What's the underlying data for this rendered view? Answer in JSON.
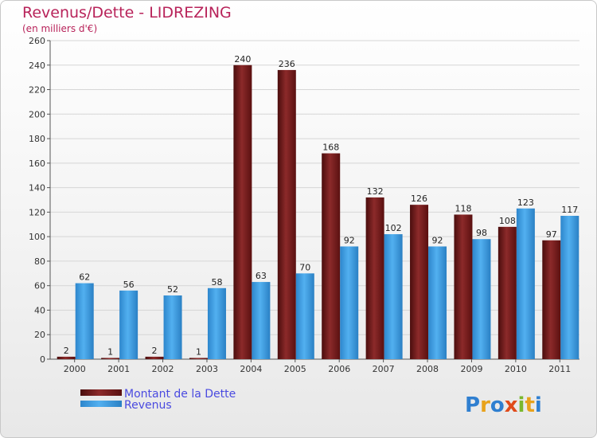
{
  "title": "Revenus/Dette - LIDREZING",
  "subtitle": "(en milliers d'€)",
  "logo_text": "Proxiti",
  "colors": {
    "dette": "#7a1a1a",
    "revenus": "#3a9ee6",
    "title": "#b8235a"
  },
  "chart_data": {
    "type": "bar",
    "title": "Revenus/Dette - LIDREZING",
    "ylabel": "(en milliers d'€)",
    "xlabel": "",
    "ylim": [
      0,
      260
    ],
    "yticks": [
      0,
      20,
      40,
      60,
      80,
      100,
      120,
      140,
      160,
      180,
      200,
      220,
      240,
      260
    ],
    "grid": true,
    "legend": "bottom-left",
    "categories": [
      "2000",
      "2001",
      "2002",
      "2003",
      "2004",
      "2005",
      "2006",
      "2007",
      "2008",
      "2009",
      "2010",
      "2011"
    ],
    "series": [
      {
        "name": "Montant de la Dette",
        "color": "#7a1a1a",
        "values": [
          2,
          1,
          2,
          1,
          240,
          236,
          168,
          132,
          126,
          118,
          108,
          97
        ]
      },
      {
        "name": "Revenus",
        "color": "#3a9ee6",
        "values": [
          62,
          56,
          52,
          58,
          63,
          70,
          92,
          102,
          92,
          98,
          123,
          117
        ]
      }
    ]
  }
}
